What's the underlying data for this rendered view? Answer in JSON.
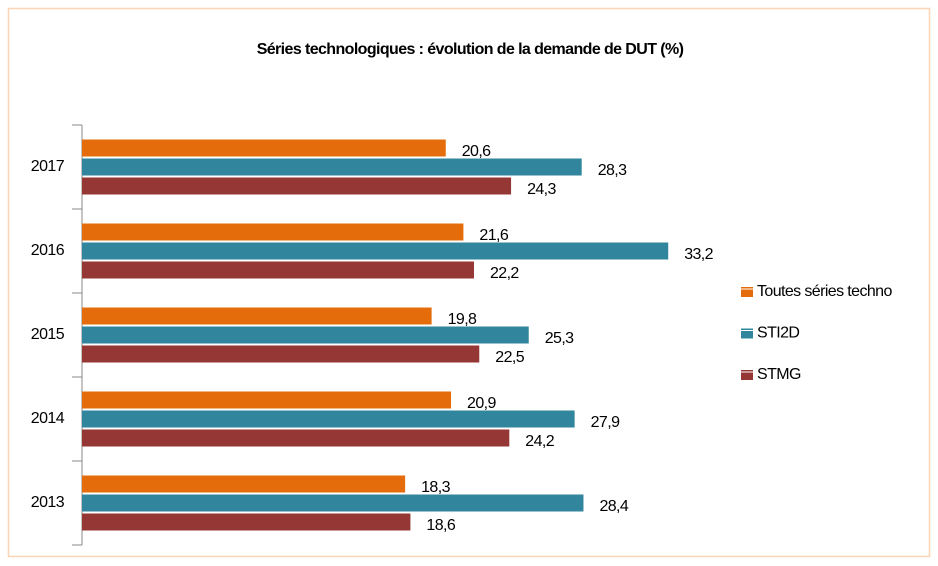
{
  "chart_data": {
    "type": "hbar",
    "title": "Séries technologiques : évolution de la demande de DUT (%)",
    "categories": [
      "2017",
      "2016",
      "2015",
      "2014",
      "2013"
    ],
    "series": [
      {
        "name": "Toutes séries techno",
        "color": "#e46c0a",
        "values": [
          20.6,
          21.6,
          19.8,
          20.9,
          18.3
        ],
        "value_labels": [
          "20,6",
          "21,6",
          "19,8",
          "20,9",
          "18,3"
        ]
      },
      {
        "name": "STI2D",
        "color": "#31859c",
        "values": [
          28.3,
          33.2,
          25.3,
          27.9,
          28.4
        ],
        "value_labels": [
          "28,3",
          "33,2",
          "25,3",
          "27,9",
          "28,4"
        ]
      },
      {
        "name": "STMG",
        "color": "#953735",
        "values": [
          24.3,
          22.2,
          22.5,
          24.2,
          18.6
        ],
        "value_labels": [
          "24,3",
          "22,2",
          "22,5",
          "24,2",
          "18,6"
        ]
      }
    ],
    "xlim": [
      0,
      35
    ],
    "legend": "right"
  }
}
